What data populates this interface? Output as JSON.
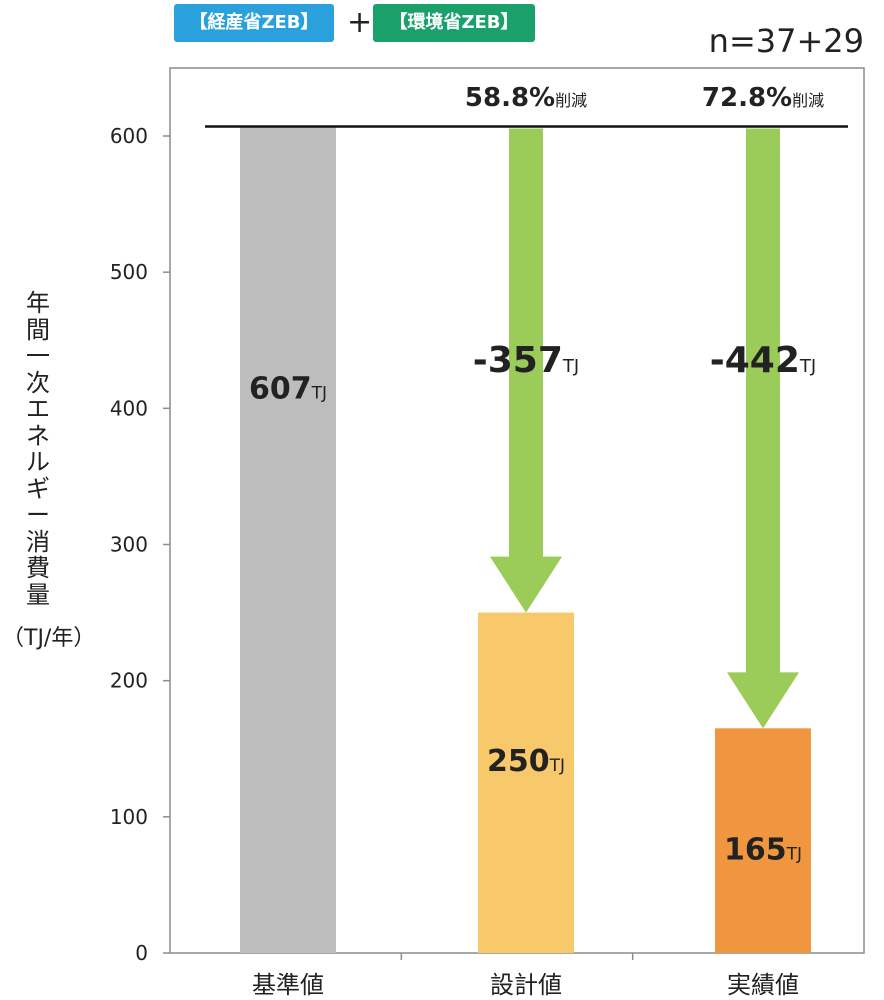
{
  "badges": {
    "meti": "【経産省ZEB】",
    "env": "【環境省ZEB】",
    "plus": "+",
    "meti_color": "#2aa1dc",
    "env_color": "#1aa06b"
  },
  "sample_note": "n=37+29",
  "y_axis_label": "年間一次エネルギー消費量",
  "y_axis_unit": "（TJ/年）",
  "chart_data": {
    "type": "bar",
    "categories": [
      "基準値",
      "設計値",
      "実績値"
    ],
    "values": [
      607,
      250,
      165
    ],
    "ylim": [
      0,
      650
    ],
    "yticks": [
      0,
      100,
      200,
      300,
      400,
      500,
      600
    ],
    "bar_colors": [
      "#bdbdbd",
      "#f8c96a",
      "#f0963f"
    ],
    "arrow_color": "#9bcb58",
    "bar_labels": [
      {
        "value": "607",
        "unit": "TJ"
      },
      {
        "value": "250",
        "unit": "TJ"
      },
      {
        "value": "165",
        "unit": "TJ"
      }
    ],
    "reference_line": 607,
    "reductions": [
      {
        "category": "設計値",
        "delta": "-357",
        "unit": "TJ",
        "percent": "58.8%",
        "suffix": "削減"
      },
      {
        "category": "実績値",
        "delta": "-442",
        "unit": "TJ",
        "percent": "72.8%",
        "suffix": "削減"
      }
    ]
  }
}
